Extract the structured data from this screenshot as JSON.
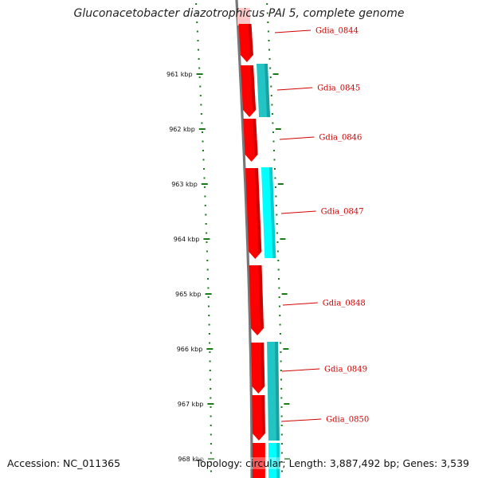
{
  "title": "Gluconacetobacter diazotrophicus PAI 5, complete genome",
  "footer": {
    "accession": "Accession: NC_011365",
    "topology": "Topology: circular; Length: 3,887,492 bp; Genes: 3,539"
  },
  "colors": {
    "forward_gene": "#ff0000",
    "reverse_gene_a": "#22c4c4",
    "reverse_gene_b": "#00ffff",
    "backbone": "#888888",
    "tick": "#1a7a1a",
    "label": "#d40000"
  },
  "axis": {
    "unit": "kbp",
    "ticks": [
      "961 kbp",
      "962 kbp",
      "963 kbp",
      "964 kbp",
      "965 kbp",
      "966 kbp",
      "967 kbp",
      "968 kbp"
    ]
  },
  "genes": [
    {
      "label": "Gdia_0844",
      "strand": "+"
    },
    {
      "label": "Gdia_0845",
      "strand": "-"
    },
    {
      "label": "Gdia_0846",
      "strand": "+"
    },
    {
      "label": "Gdia_0847",
      "strand": "-"
    },
    {
      "label": "Gdia_0848",
      "strand": "+"
    },
    {
      "label": "Gdia_0849",
      "strand": "-"
    },
    {
      "label": "Gdia_0850",
      "strand": "-"
    }
  ]
}
